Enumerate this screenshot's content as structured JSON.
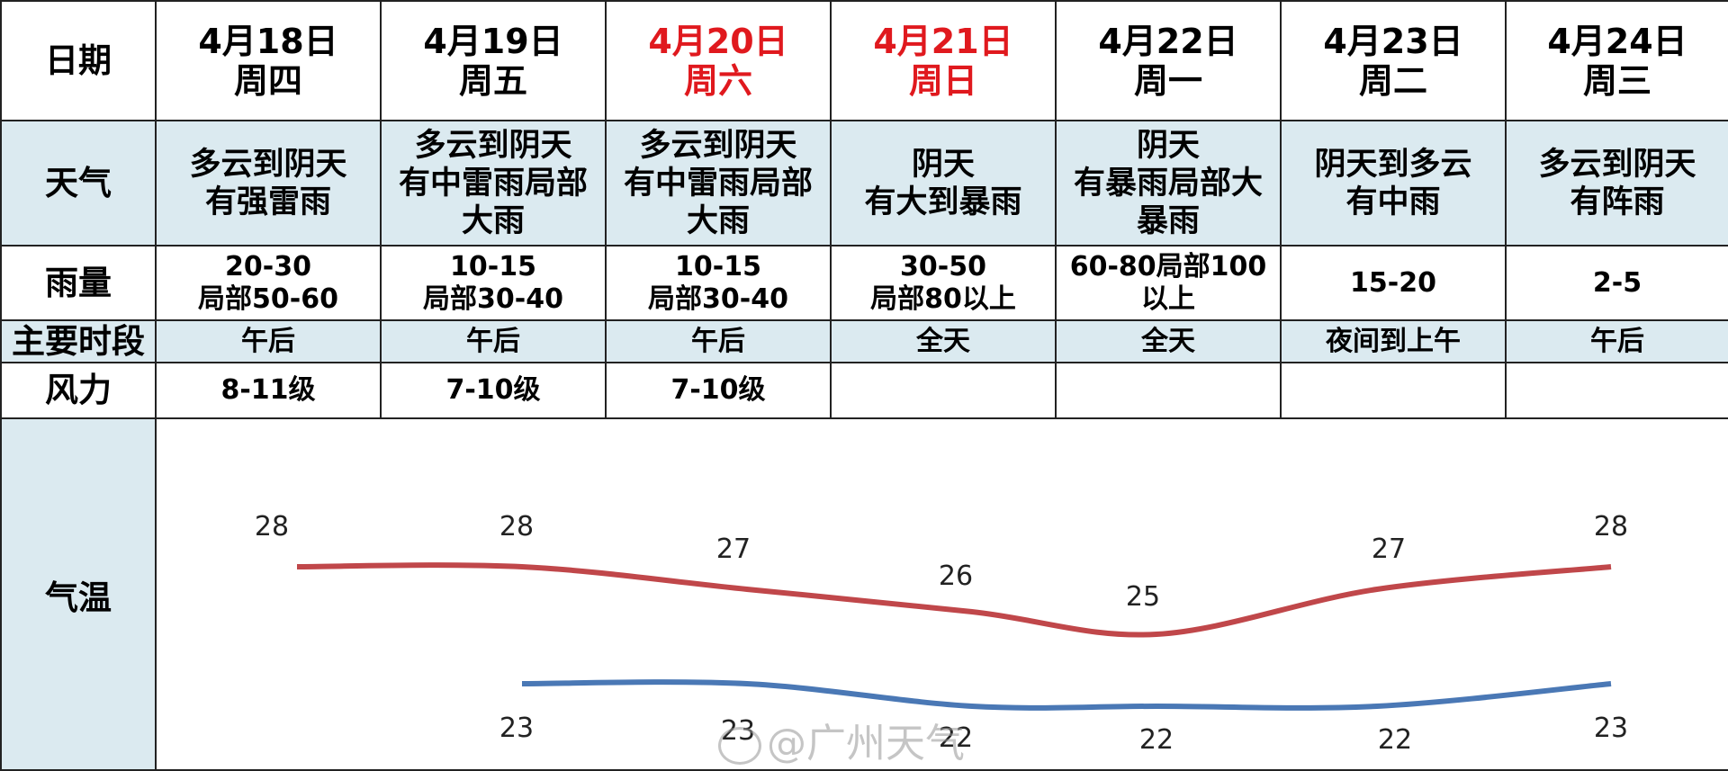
{
  "row_labels": {
    "date": "日期",
    "weather": "天气",
    "rain": "雨量",
    "period": "主要时段",
    "wind": "风力",
    "temp": "气温"
  },
  "days": [
    {
      "date": "4月18日",
      "weekday": "周四",
      "weekend": false,
      "weather": [
        "多云到阴天",
        "有强雷雨"
      ],
      "rain": [
        "20-30",
        "局部50-60"
      ],
      "period": "午后",
      "wind": "8-11级"
    },
    {
      "date": "4月19日",
      "weekday": "周五",
      "weekend": false,
      "weather": [
        "多云到阴天",
        "有中雷雨局部",
        "大雨"
      ],
      "rain": [
        "10-15",
        "局部30-40"
      ],
      "period": "午后",
      "wind": "7-10级"
    },
    {
      "date": "4月20日",
      "weekday": "周六",
      "weekend": true,
      "weather": [
        "多云到阴天",
        "有中雷雨局部",
        "大雨"
      ],
      "rain": [
        "10-15",
        "局部30-40"
      ],
      "period": "午后",
      "wind": "7-10级"
    },
    {
      "date": "4月21日",
      "weekday": "周日",
      "weekend": true,
      "weather": [
        "阴天",
        "有大到暴雨"
      ],
      "rain": [
        "30-50",
        "局部80以上"
      ],
      "period": "全天",
      "wind": ""
    },
    {
      "date": "4月22日",
      "weekday": "周一",
      "weekend": false,
      "weather": [
        "阴天",
        "有暴雨局部大",
        "暴雨"
      ],
      "rain": [
        "60-80局部100",
        "以上"
      ],
      "period": "全天",
      "wind": ""
    },
    {
      "date": "4月23日",
      "weekday": "周二",
      "weekend": false,
      "weather": [
        "阴天到多云",
        "有中雨"
      ],
      "rain": [
        "15-20"
      ],
      "period": "夜间到上午",
      "wind": ""
    },
    {
      "date": "4月24日",
      "weekday": "周三",
      "weekend": false,
      "weather": [
        "多云到阴天",
        "有阵雨"
      ],
      "rain": [
        "2-5"
      ],
      "period": "午后",
      "wind": ""
    }
  ],
  "colors": {
    "high_line": "#c0474a",
    "low_line": "#4a78b5",
    "weekend_text": "#e0191e",
    "shade": "#dbeaf0"
  },
  "chart_data": {
    "type": "line",
    "categories": [
      "4月18日",
      "4月19日",
      "4月20日",
      "4月21日",
      "4月22日",
      "4月23日",
      "4月24日"
    ],
    "series": [
      {
        "values": [
          28,
          28,
          27,
          26,
          25,
          27,
          28
        ]
      },
      {
        "values": [
          null,
          23,
          23,
          22,
          22,
          22,
          23
        ]
      }
    ],
    "ylim": [
      20,
      30
    ],
    "grid": false,
    "legend": "none"
  },
  "watermark": "@广州天气"
}
